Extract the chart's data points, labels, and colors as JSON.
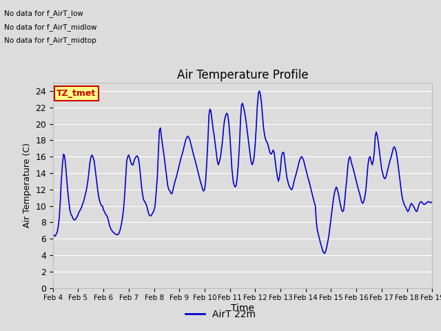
{
  "title": "Air Temperature Profile",
  "xlabel": "Time",
  "ylabel": "Air Temperature (C)",
  "legend_label": "AirT 22m",
  "ylim": [
    0,
    25
  ],
  "yticks": [
    0,
    2,
    4,
    6,
    8,
    10,
    12,
    14,
    16,
    18,
    20,
    22,
    24
  ],
  "line_color": "#0000CC",
  "line_width": 1.2,
  "bg_color": "#DCDCDC",
  "annotations": [
    "No data for f_AirT_low",
    "No data for f_AirT_midlow",
    "No data for f_AirT_midtop"
  ],
  "legend_box_facecolor": "#FFFF88",
  "legend_box_edgecolor": "#CC0000",
  "legend_text_color": "#CC0000",
  "legend_box_text": "TZ_tmet",
  "x_labels": [
    "Feb 4",
    "Feb 5",
    "Feb 6",
    "Feb 7",
    "Feb 8",
    "Feb 9",
    "Feb 10",
    "Feb 11",
    "Feb 12",
    "Feb 13",
    "Feb 14",
    "Feb 15",
    "Feb 16",
    "Feb 17",
    "Feb 18",
    "Feb 19"
  ],
  "time_values": [
    4.0,
    4.04,
    4.08,
    4.12,
    4.17,
    4.21,
    4.25,
    4.29,
    4.33,
    4.38,
    4.42,
    4.46,
    4.5,
    4.54,
    4.58,
    4.63,
    4.67,
    4.71,
    4.75,
    4.79,
    4.83,
    4.88,
    4.92,
    4.96,
    5.0,
    5.04,
    5.08,
    5.13,
    5.17,
    5.21,
    5.25,
    5.29,
    5.33,
    5.38,
    5.42,
    5.46,
    5.5,
    5.54,
    5.58,
    5.63,
    5.67,
    5.71,
    5.75,
    5.79,
    5.83,
    5.88,
    5.92,
    5.96,
    6.0,
    6.04,
    6.08,
    6.13,
    6.17,
    6.21,
    6.25,
    6.29,
    6.33,
    6.38,
    6.42,
    6.46,
    6.5,
    6.54,
    6.58,
    6.63,
    6.67,
    6.71,
    6.75,
    6.79,
    6.83,
    6.88,
    6.92,
    6.96,
    7.0,
    7.04,
    7.08,
    7.13,
    7.17,
    7.21,
    7.25,
    7.29,
    7.33,
    7.38,
    7.42,
    7.46,
    7.5,
    7.54,
    7.58,
    7.63,
    7.67,
    7.71,
    7.75,
    7.79,
    7.83,
    7.88,
    7.92,
    7.96,
    8.0,
    8.04,
    8.08,
    8.13,
    8.17,
    8.21,
    8.25,
    8.29,
    8.33,
    8.38,
    8.42,
    8.46,
    8.5,
    8.54,
    8.58,
    8.63,
    8.67,
    8.71,
    8.75,
    8.79,
    8.83,
    8.88,
    8.92,
    8.96,
    9.0,
    9.04,
    9.08,
    9.13,
    9.17,
    9.21,
    9.25,
    9.29,
    9.33,
    9.38,
    9.42,
    9.46,
    9.5,
    9.54,
    9.58,
    9.63,
    9.67,
    9.71,
    9.75,
    9.79,
    9.83,
    9.88,
    9.92,
    9.96,
    10.0,
    10.04,
    10.08,
    10.13,
    10.17,
    10.21,
    10.25,
    10.29,
    10.33,
    10.38,
    10.42,
    10.46,
    10.5,
    10.54,
    10.58,
    10.63,
    10.67,
    10.71,
    10.75,
    10.79,
    10.83,
    10.88,
    10.92,
    10.96,
    11.0,
    11.04,
    11.08,
    11.13,
    11.17,
    11.21,
    11.25,
    11.29,
    11.33,
    11.38,
    11.42,
    11.46,
    11.5,
    11.54,
    11.58,
    11.63,
    11.67,
    11.71,
    11.75,
    11.79,
    11.83,
    11.88,
    11.92,
    11.96,
    12.0,
    12.04,
    12.08,
    12.13,
    12.17,
    12.21,
    12.25,
    12.29,
    12.33,
    12.38,
    12.42,
    12.46,
    12.5,
    12.54,
    12.58,
    12.63,
    12.67,
    12.71,
    12.75,
    12.79,
    12.83,
    12.88,
    12.92,
    12.96,
    13.0,
    13.04,
    13.08,
    13.13,
    13.17,
    13.21,
    13.25,
    13.29,
    13.33,
    13.38,
    13.42,
    13.46,
    13.5,
    13.54,
    13.58,
    13.63,
    13.67,
    13.71,
    13.75,
    13.79,
    13.83,
    13.88,
    13.92,
    13.96,
    14.0,
    14.04,
    14.08,
    14.13,
    14.17,
    14.21,
    14.25,
    14.29,
    14.33,
    14.38,
    14.42,
    14.46,
    14.5,
    14.54,
    14.58,
    14.63,
    14.67,
    14.71,
    14.75,
    14.79,
    14.83,
    14.88,
    14.92,
    14.96,
    15.0,
    15.04,
    15.08,
    15.13,
    15.17,
    15.21,
    15.25,
    15.29,
    15.33,
    15.38,
    15.42,
    15.46,
    15.5,
    15.54,
    15.58,
    15.63,
    15.67,
    15.71,
    15.75,
    15.79,
    15.83,
    15.88,
    15.92,
    15.96,
    16.0,
    16.04,
    16.08,
    16.13,
    16.17,
    16.21,
    16.25,
    16.29,
    16.33,
    16.38,
    16.42,
    16.46,
    16.5,
    16.54,
    16.58,
    16.63,
    16.67,
    16.71,
    16.75,
    16.79,
    16.83,
    16.88,
    16.92,
    16.96,
    17.0,
    17.04,
    17.08,
    17.13,
    17.17,
    17.21,
    17.25,
    17.29,
    17.33,
    17.38,
    17.42,
    17.46,
    17.5,
    17.54,
    17.58,
    17.63,
    17.67,
    17.71,
    17.75,
    17.79,
    17.83,
    17.88,
    17.92,
    17.96,
    18.0,
    18.04,
    18.08,
    18.13,
    18.17,
    18.21,
    18.25,
    18.29,
    18.33,
    18.38,
    18.42,
    18.46,
    18.5,
    18.54,
    18.58,
    18.63,
    18.67,
    18.71,
    18.75,
    18.79,
    18.83,
    18.88,
    18.92,
    18.96,
    19.0
  ],
  "temp_values": [
    6.5,
    6.4,
    6.3,
    6.5,
    6.8,
    7.5,
    8.5,
    10.5,
    13.0,
    15.2,
    16.3,
    16.1,
    15.0,
    13.5,
    12.0,
    10.5,
    9.5,
    9.0,
    8.8,
    8.5,
    8.3,
    8.3,
    8.5,
    8.7,
    9.0,
    9.3,
    9.5,
    9.8,
    10.2,
    10.5,
    11.0,
    11.5,
    12.0,
    13.0,
    14.0,
    15.2,
    15.9,
    16.2,
    16.0,
    15.5,
    14.5,
    13.5,
    12.5,
    11.5,
    10.8,
    10.3,
    10.0,
    10.0,
    9.5,
    9.3,
    9.0,
    8.8,
    8.5,
    8.0,
    7.5,
    7.2,
    7.0,
    6.8,
    6.7,
    6.6,
    6.5,
    6.5,
    6.5,
    6.8,
    7.2,
    7.8,
    8.5,
    9.5,
    11.0,
    13.5,
    15.5,
    16.0,
    16.2,
    15.8,
    15.3,
    15.0,
    15.0,
    15.5,
    15.8,
    16.0,
    16.1,
    15.8,
    15.0,
    13.8,
    12.5,
    11.5,
    10.8,
    10.5,
    10.3,
    10.0,
    9.5,
    9.0,
    8.8,
    8.8,
    9.0,
    9.2,
    9.5,
    10.0,
    11.5,
    13.5,
    16.5,
    19.2,
    19.5,
    18.5,
    17.5,
    16.5,
    15.5,
    14.5,
    13.5,
    12.5,
    12.0,
    11.8,
    11.5,
    11.5,
    12.0,
    12.5,
    13.0,
    13.5,
    14.0,
    14.5,
    15.0,
    15.5,
    16.0,
    16.5,
    17.0,
    17.5,
    18.0,
    18.3,
    18.5,
    18.3,
    18.0,
    17.5,
    17.0,
    16.5,
    16.0,
    15.5,
    15.0,
    14.5,
    14.0,
    13.5,
    13.0,
    12.5,
    12.0,
    11.8,
    12.0,
    13.0,
    15.0,
    18.0,
    21.0,
    21.8,
    21.5,
    20.5,
    19.5,
    18.5,
    17.5,
    16.5,
    15.5,
    15.0,
    15.3,
    16.0,
    17.0,
    18.0,
    19.5,
    20.5,
    21.0,
    21.3,
    21.0,
    20.0,
    18.5,
    16.5,
    14.5,
    13.0,
    12.5,
    12.3,
    12.5,
    13.5,
    15.0,
    17.5,
    20.5,
    22.3,
    22.5,
    22.0,
    21.5,
    20.5,
    19.5,
    18.5,
    17.5,
    16.5,
    15.5,
    15.0,
    15.3,
    16.0,
    17.5,
    19.5,
    22.0,
    23.8,
    24.0,
    23.5,
    22.5,
    21.0,
    19.5,
    18.5,
    18.0,
    17.8,
    17.5,
    17.0,
    16.5,
    16.3,
    16.5,
    16.8,
    16.5,
    15.5,
    14.5,
    13.5,
    13.0,
    13.5,
    14.5,
    16.0,
    16.5,
    16.5,
    15.5,
    14.5,
    13.5,
    13.0,
    12.5,
    12.2,
    12.0,
    12.0,
    12.5,
    13.0,
    13.5,
    14.0,
    14.5,
    15.0,
    15.5,
    15.8,
    16.0,
    15.8,
    15.5,
    15.0,
    14.5,
    14.0,
    13.5,
    13.0,
    12.5,
    12.0,
    11.5,
    11.0,
    10.5,
    10.0,
    8.0,
    7.0,
    6.5,
    6.0,
    5.5,
    5.0,
    4.5,
    4.3,
    4.2,
    4.5,
    5.0,
    5.8,
    6.5,
    7.5,
    8.5,
    9.5,
    10.5,
    11.5,
    12.0,
    12.3,
    12.0,
    11.5,
    10.8,
    10.0,
    9.5,
    9.3,
    9.5,
    10.5,
    12.0,
    13.5,
    15.0,
    15.8,
    16.0,
    15.5,
    15.0,
    14.5,
    14.0,
    13.5,
    13.0,
    12.5,
    12.0,
    11.5,
    11.0,
    10.5,
    10.3,
    10.5,
    11.0,
    12.0,
    13.5,
    15.0,
    15.8,
    16.0,
    15.5,
    15.0,
    15.5,
    16.5,
    18.5,
    19.0,
    18.5,
    17.5,
    16.5,
    15.5,
    14.5,
    14.0,
    13.5,
    13.3,
    13.5,
    14.0,
    14.5,
    15.0,
    15.5,
    16.0,
    16.5,
    17.0,
    17.2,
    17.0,
    16.5,
    15.5,
    14.5,
    13.5,
    12.5,
    11.5,
    10.8,
    10.3,
    10.0,
    9.8,
    9.5,
    9.3,
    9.5,
    10.0,
    10.3,
    10.2,
    10.0,
    9.8,
    9.5,
    9.3,
    9.5,
    10.0,
    10.3,
    10.5,
    10.5,
    10.3,
    10.2,
    10.2,
    10.3,
    10.4,
    10.5,
    10.5,
    10.4,
    10.4,
    10.5
  ]
}
